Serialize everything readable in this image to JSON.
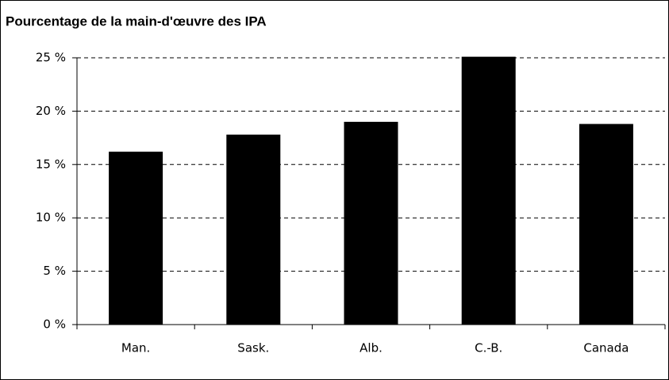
{
  "chart_data": {
    "type": "bar",
    "title": "Pourcentage de la main-d'œuvre des IPA",
    "categories": [
      "Man.",
      "Sask.",
      "Alb.",
      "C.-B.",
      "Canada"
    ],
    "values": [
      16.2,
      17.8,
      19.0,
      25.1,
      18.8
    ],
    "color": "#000000",
    "ylim": [
      0,
      25
    ],
    "yticks": [
      {
        "value": 0,
        "label": "0 %"
      },
      {
        "value": 5,
        "label": "5 %"
      },
      {
        "value": 10,
        "label": "10 %"
      },
      {
        "value": 15,
        "label": "15 %"
      },
      {
        "value": 20,
        "label": "20 %"
      },
      {
        "value": 25,
        "label": "25 %"
      }
    ],
    "grid": true
  }
}
